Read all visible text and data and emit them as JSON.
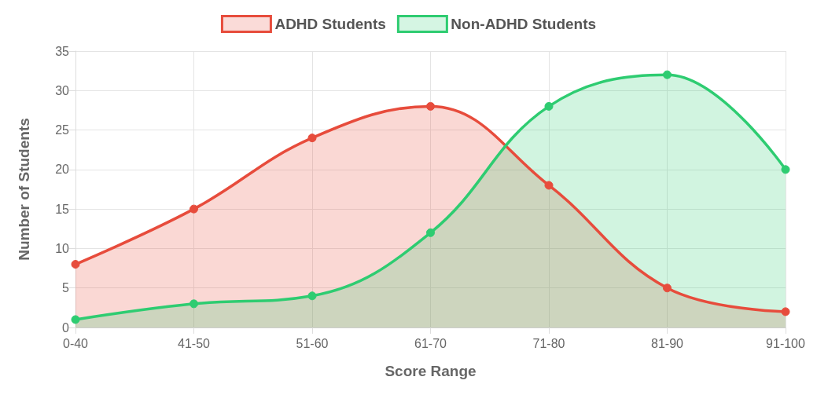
{
  "chart_data": {
    "type": "area",
    "xlabel": "Score Range",
    "ylabel": "Number of Students",
    "categories": [
      "0-40",
      "41-50",
      "51-60",
      "61-70",
      "71-80",
      "81-90",
      "91-100"
    ],
    "series": [
      {
        "name": "ADHD Students",
        "color": "#e74c3c",
        "values": [
          8,
          15,
          24,
          28,
          18,
          5,
          2
        ]
      },
      {
        "name": "Non-ADHD Students",
        "color": "#2ecc71",
        "values": [
          1,
          3,
          4,
          12,
          28,
          32,
          20
        ]
      }
    ],
    "ylim": [
      0,
      35
    ],
    "yticks": [
      0,
      5,
      10,
      15,
      20,
      25,
      30,
      35
    ],
    "grid": true,
    "legend": "top",
    "marker": "circle"
  }
}
